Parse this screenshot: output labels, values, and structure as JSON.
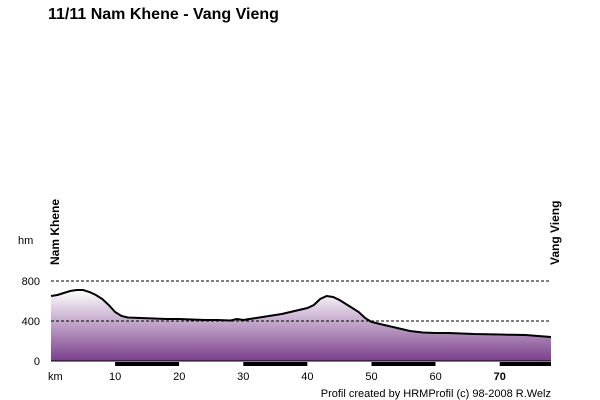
{
  "title": "11/11 Nam Khene - Vang Vieng",
  "credit": "Profil created by HRMProfil (c) 98-2008 R.Welz",
  "chart_data": {
    "type": "area",
    "title": "11/11 Nam Khene - Vang Vieng",
    "xlabel": "km",
    "ylabel": "hm",
    "xlim": [
      0,
      78
    ],
    "ylim": [
      0,
      800
    ],
    "xticks": [
      10,
      20,
      30,
      40,
      50,
      60,
      70
    ],
    "yticks": [
      0,
      400,
      800
    ],
    "gridlines_y": [
      400,
      800
    ],
    "start_label": "Nam Khene",
    "end_label": "Vang Vieng",
    "fill_gradient": [
      "#ffffff",
      "#7a3f8c"
    ],
    "line_color": "#000000",
    "series": [
      {
        "x": [
          0,
          1,
          2,
          3,
          4,
          5,
          6,
          7,
          8,
          9,
          10,
          11,
          12,
          14,
          16,
          18,
          20,
          22,
          24,
          26,
          28,
          29,
          30,
          31,
          32,
          33,
          34,
          36,
          38,
          40,
          41,
          42,
          43,
          44,
          45,
          46,
          47,
          48,
          49,
          50,
          52,
          54,
          56,
          58,
          60,
          62,
          64,
          66,
          68,
          70,
          72,
          74,
          76,
          78
        ],
        "values": [
          650,
          660,
          680,
          700,
          710,
          710,
          690,
          660,
          620,
          560,
          490,
          450,
          435,
          430,
          425,
          420,
          420,
          415,
          410,
          410,
          405,
          420,
          410,
          420,
          430,
          440,
          450,
          470,
          500,
          530,
          560,
          620,
          650,
          640,
          610,
          570,
          530,
          490,
          430,
          390,
          360,
          330,
          300,
          285,
          280,
          280,
          275,
          270,
          268,
          265,
          262,
          260,
          250,
          240
        ]
      }
    ]
  }
}
